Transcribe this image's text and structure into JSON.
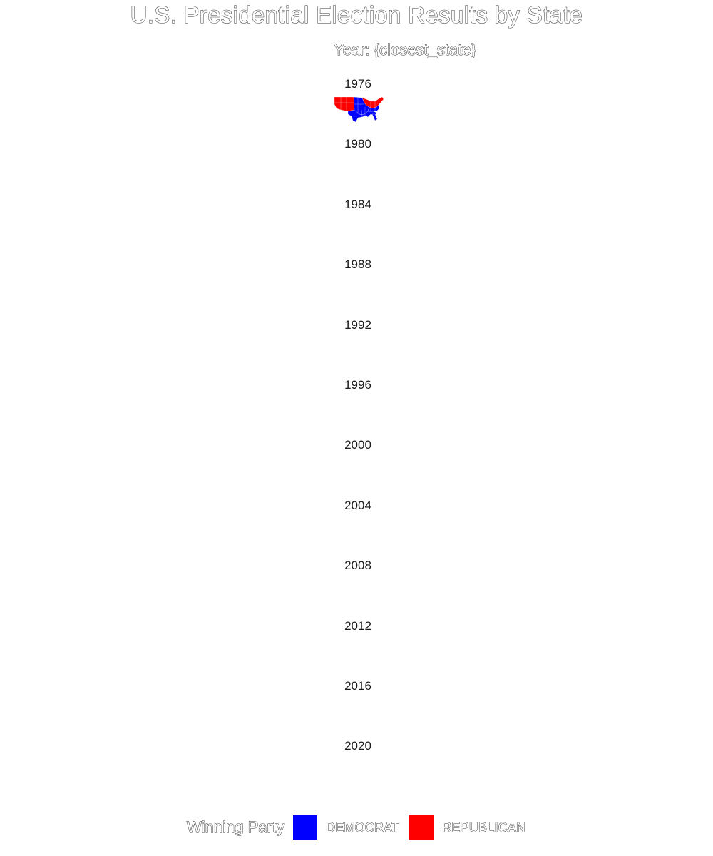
{
  "chart_data": {
    "type": "map",
    "title": "U.S. Presidential Election Results by State",
    "subtitle": "Year: {closest_state}",
    "facets": [
      "1976",
      "1980",
      "1984",
      "1988",
      "1992",
      "1996",
      "2000",
      "2004",
      "2008",
      "2012",
      "2016",
      "2020"
    ],
    "legend": {
      "title": "Winning Party",
      "placement": "bottom",
      "entries": [
        {
          "label": "DEMOCRAT",
          "color": "#0000ff"
        },
        {
          "label": "REPUBLICAN",
          "color": "#ff0000"
        }
      ]
    },
    "rendered_map_year": "1976",
    "party_colors": {
      "DEMOCRAT": "#0000ff",
      "REPUBLICAN": "#ff0000"
    }
  }
}
